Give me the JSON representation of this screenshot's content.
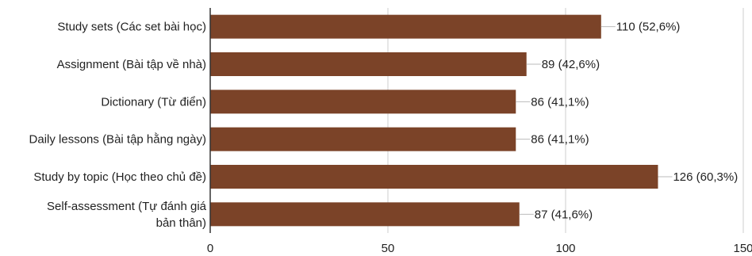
{
  "chart_data": {
    "type": "bar",
    "orientation": "horizontal",
    "title": "",
    "xlabel": "",
    "ylabel": "",
    "xlim": [
      0,
      150
    ],
    "x_ticks": [
      0,
      50,
      100,
      150
    ],
    "grid": true,
    "legend": "none",
    "bar_color": "#7B4328",
    "categories": [
      [
        "Study sets (Các set bài học)"
      ],
      [
        "Assignment (Bài tập về nhà)"
      ],
      [
        "Dictionary (Từ điển)"
      ],
      [
        "Daily lessons (Bài tập hằng ngày)"
      ],
      [
        "Study by topic (Học theo chủ đề)"
      ],
      [
        "Self-assessment (Tự đánh giá",
        "bản thân)"
      ]
    ],
    "values": [
      110,
      89,
      86,
      86,
      126,
      87
    ],
    "data_labels": [
      "110 (52,6%)",
      "89 (42,6%)",
      "86 (41,1%)",
      "86 (41,1%)",
      "126 (60,3%)",
      "87 (41,6%)"
    ]
  }
}
